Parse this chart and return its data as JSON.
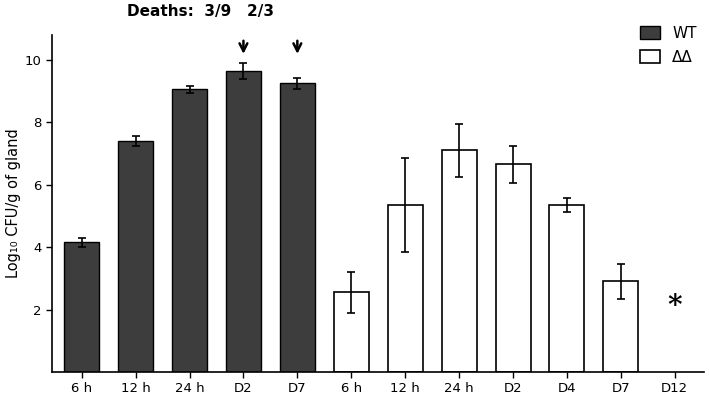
{
  "wt_labels": [
    "6 h",
    "12 h",
    "24 h",
    "D2",
    "D7"
  ],
  "wt_values": [
    4.15,
    7.4,
    9.05,
    9.65,
    9.25
  ],
  "wt_errors": [
    0.15,
    0.15,
    0.12,
    0.25,
    0.18
  ],
  "wt_color": "#3d3d3d",
  "dd_labels": [
    "6 h",
    "12 h",
    "24 h",
    "D2",
    "D4",
    "D7",
    "D12"
  ],
  "dd_values": [
    2.55,
    5.35,
    7.1,
    6.65,
    5.35,
    2.9,
    0.0
  ],
  "dd_errors": [
    0.65,
    1.5,
    0.85,
    0.6,
    0.22,
    0.55,
    0.0
  ],
  "dd_color": "#ffffff",
  "dd_edgecolor": "#000000",
  "ylabel": "Log₁₀ CFU/g of gland",
  "ylim": [
    0,
    10.8
  ],
  "yticks": [
    2,
    4,
    6,
    8,
    10
  ],
  "title": "Deaths:  3/9   2/3",
  "legend_wt": "WT",
  "legend_dd": "ΔΔ",
  "bar_width": 0.65
}
